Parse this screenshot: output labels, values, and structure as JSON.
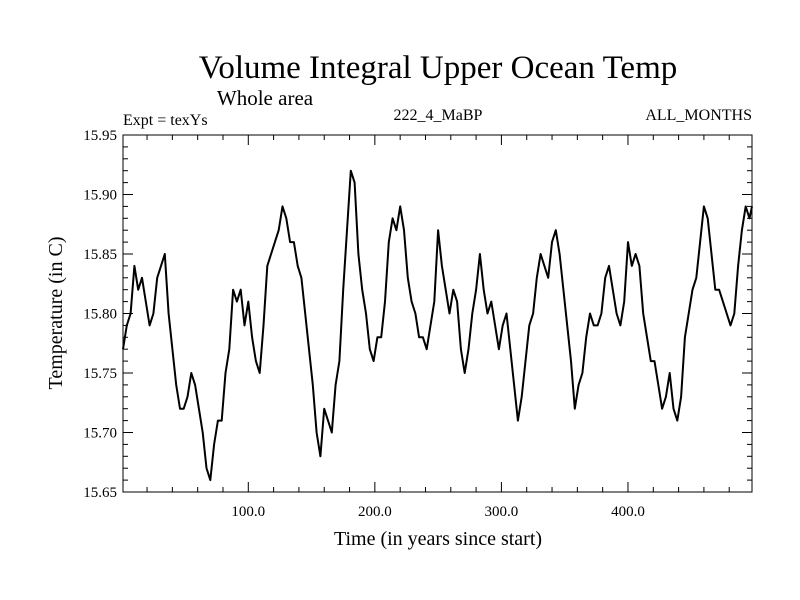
{
  "chart_data": {
    "type": "line",
    "title": "Volume Integral Upper Ocean Temp",
    "subtitle": "Whole area",
    "header_left": "Expt = texYs",
    "header_center": "222_4_MaBP",
    "header_right": "ALL_MONTHS",
    "xlabel": "Time (in years since start)",
    "ylabel": "Temperature (in C)",
    "xlim": [
      1,
      498
    ],
    "ylim": [
      15.65,
      15.95
    ],
    "xticks": [
      100,
      200,
      300,
      400
    ],
    "xtick_labels": [
      "100.0",
      "200.0",
      "300.0",
      "400.0"
    ],
    "yticks": [
      15.65,
      15.7,
      15.75,
      15.8,
      15.85,
      15.9,
      15.95
    ],
    "ytick_labels": [
      "15.65",
      "15.70",
      "15.75",
      "15.80",
      "15.85",
      "15.90",
      "15.95"
    ],
    "grid": false,
    "line_color": "#000000",
    "series": [
      {
        "x": [
          1,
          4,
          7,
          10,
          13,
          16,
          19,
          22,
          25,
          28,
          31,
          34,
          37,
          40,
          43,
          46,
          49,
          52,
          55,
          58,
          61,
          64,
          67,
          70,
          73,
          76,
          79,
          82,
          85,
          88,
          91,
          94,
          97,
          100,
          103,
          106,
          109,
          112,
          115,
          118,
          121,
          124,
          127,
          130,
          133,
          136,
          139,
          142,
          145,
          148,
          151,
          154,
          157,
          160,
          163,
          166,
          169,
          172,
          175,
          178,
          181,
          184,
          187,
          190,
          193,
          196,
          199,
          202,
          205,
          208,
          211,
          214,
          217,
          220,
          223,
          226,
          229,
          232,
          235,
          238,
          241,
          244,
          247,
          250,
          253,
          256,
          259,
          262,
          265,
          268,
          271,
          274,
          277,
          280,
          283,
          286,
          289,
          292,
          295,
          298,
          301,
          304,
          307,
          310,
          313,
          316,
          319,
          322,
          325,
          328,
          331,
          334,
          337,
          340,
          343,
          346,
          349,
          352,
          355,
          358,
          361,
          364,
          367,
          370,
          373,
          376,
          379,
          382,
          385,
          388,
          391,
          394,
          397,
          400,
          403,
          406,
          409,
          412,
          415,
          418,
          421,
          424,
          427,
          430,
          433,
          436,
          439,
          442,
          445,
          448,
          451,
          454,
          457,
          460,
          463,
          466,
          469,
          472,
          475,
          478,
          481,
          484,
          487,
          490,
          493,
          496,
          498
        ],
        "y": [
          15.77,
          15.79,
          15.8,
          15.84,
          15.82,
          15.83,
          15.81,
          15.79,
          15.8,
          15.83,
          15.84,
          15.85,
          15.8,
          15.77,
          15.74,
          15.72,
          15.72,
          15.73,
          15.75,
          15.74,
          15.72,
          15.7,
          15.67,
          15.66,
          15.69,
          15.71,
          15.71,
          15.75,
          15.77,
          15.82,
          15.81,
          15.82,
          15.79,
          15.81,
          15.78,
          15.76,
          15.75,
          15.79,
          15.84,
          15.85,
          15.86,
          15.87,
          15.89,
          15.88,
          15.86,
          15.86,
          15.84,
          15.83,
          15.8,
          15.77,
          15.74,
          15.7,
          15.68,
          15.72,
          15.71,
          15.7,
          15.74,
          15.76,
          15.82,
          15.87,
          15.92,
          15.91,
          15.85,
          15.82,
          15.8,
          15.77,
          15.76,
          15.78,
          15.78,
          15.81,
          15.86,
          15.88,
          15.87,
          15.89,
          15.87,
          15.83,
          15.81,
          15.8,
          15.78,
          15.78,
          15.77,
          15.79,
          15.81,
          15.87,
          15.84,
          15.82,
          15.8,
          15.82,
          15.81,
          15.77,
          15.75,
          15.77,
          15.8,
          15.82,
          15.85,
          15.82,
          15.8,
          15.81,
          15.79,
          15.77,
          15.79,
          15.8,
          15.77,
          15.74,
          15.71,
          15.73,
          15.76,
          15.79,
          15.8,
          15.83,
          15.85,
          15.84,
          15.83,
          15.86,
          15.87,
          15.85,
          15.82,
          15.79,
          15.76,
          15.72,
          15.74,
          15.75,
          15.78,
          15.8,
          15.79,
          15.79,
          15.8,
          15.83,
          15.84,
          15.82,
          15.8,
          15.79,
          15.81,
          15.86,
          15.84,
          15.85,
          15.84,
          15.8,
          15.78,
          15.76,
          15.76,
          15.74,
          15.72,
          15.73,
          15.75,
          15.72,
          15.71,
          15.73,
          15.78,
          15.8,
          15.82,
          15.83,
          15.86,
          15.89,
          15.88,
          15.85,
          15.82,
          15.82,
          15.81,
          15.8,
          15.79,
          15.8,
          15.84,
          15.87,
          15.89,
          15.88,
          15.89
        ]
      }
    ]
  }
}
